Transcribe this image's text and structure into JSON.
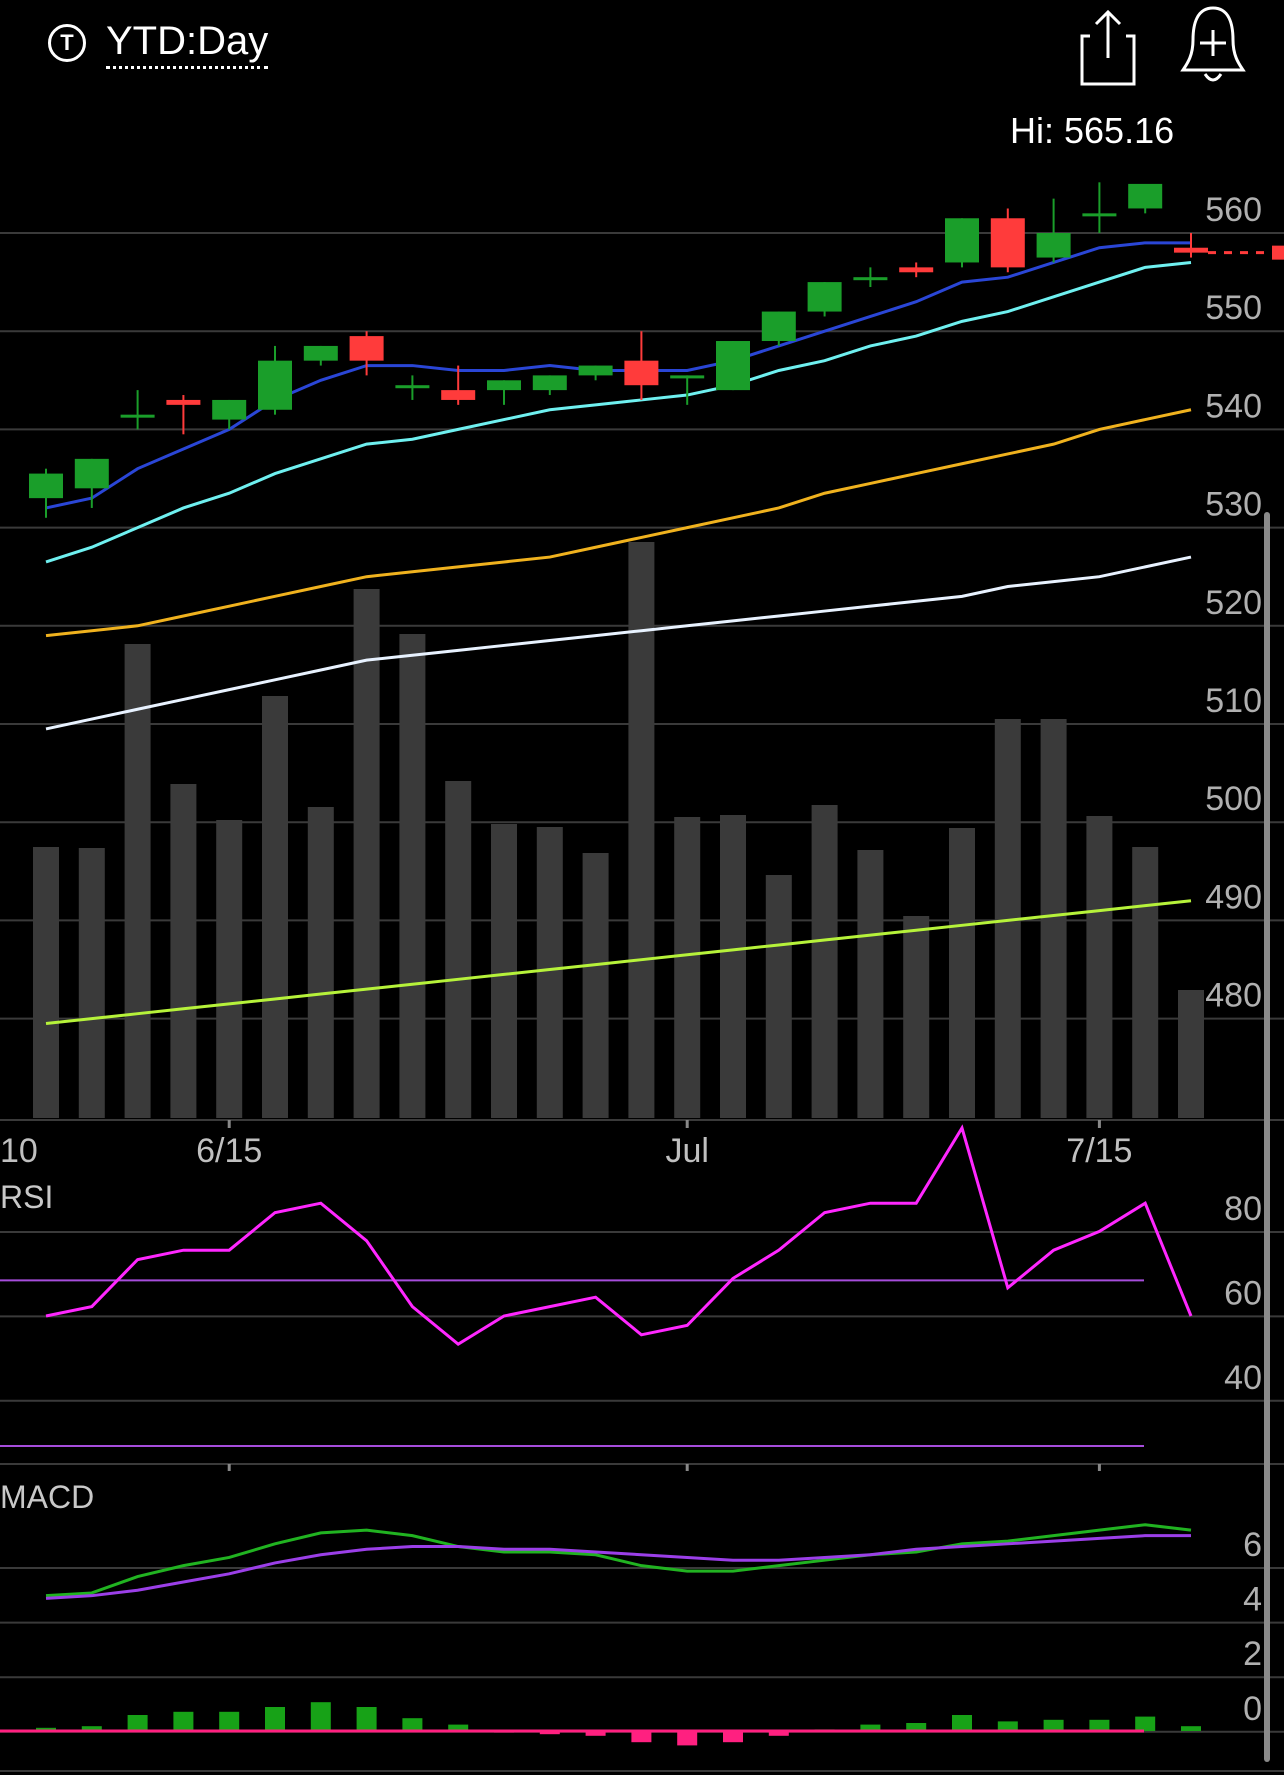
{
  "header": {
    "range_icon": "T",
    "range_label": "YTD:Day",
    "hi_label": "Hi: 565.16",
    "share_icon": "share-icon",
    "alert_icon": "alert-bell-plus-icon"
  },
  "colors": {
    "background": "#000000",
    "up": "#1a9e2a",
    "down": "#ff3b3b",
    "grid": "#3a3a3a",
    "axis_text": "#b0b0b0",
    "ma_blue": "#2a46d6",
    "ma_cyan": "#6ff0f0",
    "ma_orange": "#f0b21e",
    "ma_white": "#e8f2ff",
    "ma_lime": "#b6f23a",
    "volume": "#3a3a3a",
    "rsi": "#ff27ff",
    "rsi_ref": "#a64ddb",
    "macd": "#21b321",
    "macd_signal": "#9b3fe8",
    "hist_up": "#17a217",
    "hist_down": "#ff2080",
    "last_price": "#ff3b3b"
  },
  "chart_data": [
    {
      "type": "candlestick",
      "name": "price",
      "yticks": [
        560,
        550,
        540,
        530,
        520,
        510,
        500,
        490,
        480
      ],
      "ylim": [
        470,
        570
      ],
      "xticks": [
        {
          "i": 0,
          "label": "10"
        },
        {
          "i": 4,
          "label": "6/15"
        },
        {
          "i": 14,
          "label": "Jul"
        },
        {
          "i": 23,
          "label": "7/15"
        }
      ],
      "candles": [
        {
          "o": 533.0,
          "h": 536.0,
          "l": 531.0,
          "c": 535.5
        },
        {
          "o": 534.0,
          "h": 537.0,
          "l": 532.0,
          "c": 537.0
        },
        {
          "o": 541.5,
          "h": 544.0,
          "l": 540.0,
          "c": 541.5
        },
        {
          "o": 543.0,
          "h": 543.5,
          "l": 539.5,
          "c": 542.5
        },
        {
          "o": 541.0,
          "h": 543.0,
          "l": 540.0,
          "c": 543.0
        },
        {
          "o": 542.0,
          "h": 548.5,
          "l": 541.5,
          "c": 547.0
        },
        {
          "o": 547.0,
          "h": 548.5,
          "l": 546.5,
          "c": 548.5
        },
        {
          "o": 549.5,
          "h": 550.0,
          "l": 545.5,
          "c": 547.0
        },
        {
          "o": 544.5,
          "h": 545.5,
          "l": 543.0,
          "c": 544.5
        },
        {
          "o": 544.0,
          "h": 546.5,
          "l": 542.5,
          "c": 543.0
        },
        {
          "o": 544.0,
          "h": 545.0,
          "l": 542.5,
          "c": 545.0
        },
        {
          "o": 544.0,
          "h": 545.5,
          "l": 543.5,
          "c": 545.5
        },
        {
          "o": 545.5,
          "h": 546.5,
          "l": 545.0,
          "c": 546.5
        },
        {
          "o": 547.0,
          "h": 550.0,
          "l": 543.0,
          "c": 544.5
        },
        {
          "o": 545.5,
          "h": 545.5,
          "l": 542.5,
          "c": 545.5
        },
        {
          "o": 544.0,
          "h": 549.0,
          "l": 544.0,
          "c": 549.0
        },
        {
          "o": 549.0,
          "h": 552.0,
          "l": 548.5,
          "c": 552.0
        },
        {
          "o": 552.0,
          "h": 555.0,
          "l": 551.5,
          "c": 555.0
        },
        {
          "o": 555.5,
          "h": 556.5,
          "l": 554.5,
          "c": 555.5
        },
        {
          "o": 556.5,
          "h": 557.0,
          "l": 555.5,
          "c": 556.0
        },
        {
          "o": 557.0,
          "h": 561.5,
          "l": 556.5,
          "c": 561.5
        },
        {
          "o": 561.5,
          "h": 562.5,
          "l": 556.0,
          "c": 556.5
        },
        {
          "o": 557.5,
          "h": 563.5,
          "l": 557.0,
          "c": 560.0
        },
        {
          "o": 562.0,
          "h": 565.16,
          "l": 560.0,
          "c": 562.0
        },
        {
          "o": 562.5,
          "h": 564.5,
          "l": 562.0,
          "c": 565.0
        },
        {
          "o": 558.5,
          "h": 560.0,
          "l": 557.5,
          "c": 558.0
        }
      ],
      "last_price": 558.0,
      "ma_series": [
        {
          "color_key": "ma_blue",
          "values": [
            532,
            533,
            536,
            538,
            540,
            543,
            545,
            546.5,
            546.5,
            546,
            546,
            546.5,
            546,
            546,
            546,
            547,
            548.5,
            550,
            551.5,
            553,
            555,
            555.5,
            557,
            558.5,
            559,
            559
          ]
        },
        {
          "color_key": "ma_cyan",
          "values": [
            526.5,
            528,
            530,
            532,
            533.5,
            535.5,
            537,
            538.5,
            539,
            540,
            541,
            542,
            542.5,
            543,
            543.5,
            544.5,
            546,
            547,
            548.5,
            549.5,
            551,
            552,
            553.5,
            555,
            556.5,
            557
          ]
        },
        {
          "color_key": "ma_orange",
          "values": [
            519,
            519.5,
            520,
            521,
            522,
            523,
            524,
            525,
            525.5,
            526,
            526.5,
            527,
            528,
            529,
            530,
            531,
            532,
            533.5,
            534.5,
            535.5,
            536.5,
            537.5,
            538.5,
            540,
            541,
            542
          ]
        },
        {
          "color_key": "ma_white",
          "values": [
            509.5,
            510.5,
            511.5,
            512.5,
            513.5,
            514.5,
            515.5,
            516.5,
            517,
            517.5,
            518,
            518.5,
            519,
            519.5,
            520,
            520.5,
            521,
            521.5,
            522,
            522.5,
            523,
            524,
            524.5,
            525,
            526,
            527
          ]
        },
        {
          "color_key": "ma_lime",
          "values": [
            479.5,
            480,
            480.5,
            481,
            481.5,
            482,
            482.5,
            483,
            483.5,
            484,
            484.5,
            485,
            485.5,
            486,
            486.5,
            487,
            487.5,
            488,
            488.5,
            489,
            489.5,
            490,
            490.5,
            491,
            491.5,
            492
          ]
        }
      ],
      "volume": [
        271,
        270,
        474,
        334,
        298,
        422,
        311,
        529,
        484,
        337,
        294,
        291,
        265,
        576,
        301,
        303,
        243,
        313,
        268,
        202,
        290,
        399,
        399,
        302,
        271,
        128
      ]
    },
    {
      "type": "line",
      "name": "RSI",
      "title": "RSI",
      "yticks": [
        80,
        60,
        40
      ],
      "ylim": [
        20,
        90
      ],
      "reference_line": 60,
      "values": [
        60,
        61,
        66,
        67,
        67,
        71,
        72,
        68,
        61,
        57,
        60,
        61,
        62,
        58,
        59,
        64,
        67,
        71,
        72,
        72,
        80,
        63,
        67,
        69,
        72,
        60
      ]
    },
    {
      "type": "line",
      "name": "MACD",
      "title": "MACD",
      "yticks": [
        6,
        4,
        2,
        0
      ],
      "ylim": [
        -1,
        7
      ],
      "macd": [
        4.4,
        4.5,
        5.1,
        5.5,
        5.8,
        6.3,
        6.7,
        6.8,
        6.6,
        6.2,
        6.0,
        6.0,
        5.9,
        5.5,
        5.3,
        5.3,
        5.5,
        5.7,
        5.9,
        6.0,
        6.3,
        6.4,
        6.6,
        6.8,
        7.0,
        6.8
      ],
      "signal": [
        4.3,
        4.4,
        4.6,
        4.9,
        5.2,
        5.6,
        5.9,
        6.1,
        6.2,
        6.2,
        6.1,
        6.1,
        6.0,
        5.9,
        5.8,
        5.7,
        5.7,
        5.8,
        5.9,
        6.1,
        6.2,
        6.3,
        6.4,
        6.5,
        6.6,
        6.6
      ],
      "histogram": [
        0.1,
        0.15,
        0.5,
        0.6,
        0.6,
        0.75,
        0.9,
        0.75,
        0.4,
        0.2,
        -0.05,
        -0.1,
        -0.15,
        -0.35,
        -0.45,
        -0.35,
        -0.15,
        0.05,
        0.2,
        0.25,
        0.5,
        0.3,
        0.35,
        0.35,
        0.45,
        0.15
      ]
    }
  ]
}
